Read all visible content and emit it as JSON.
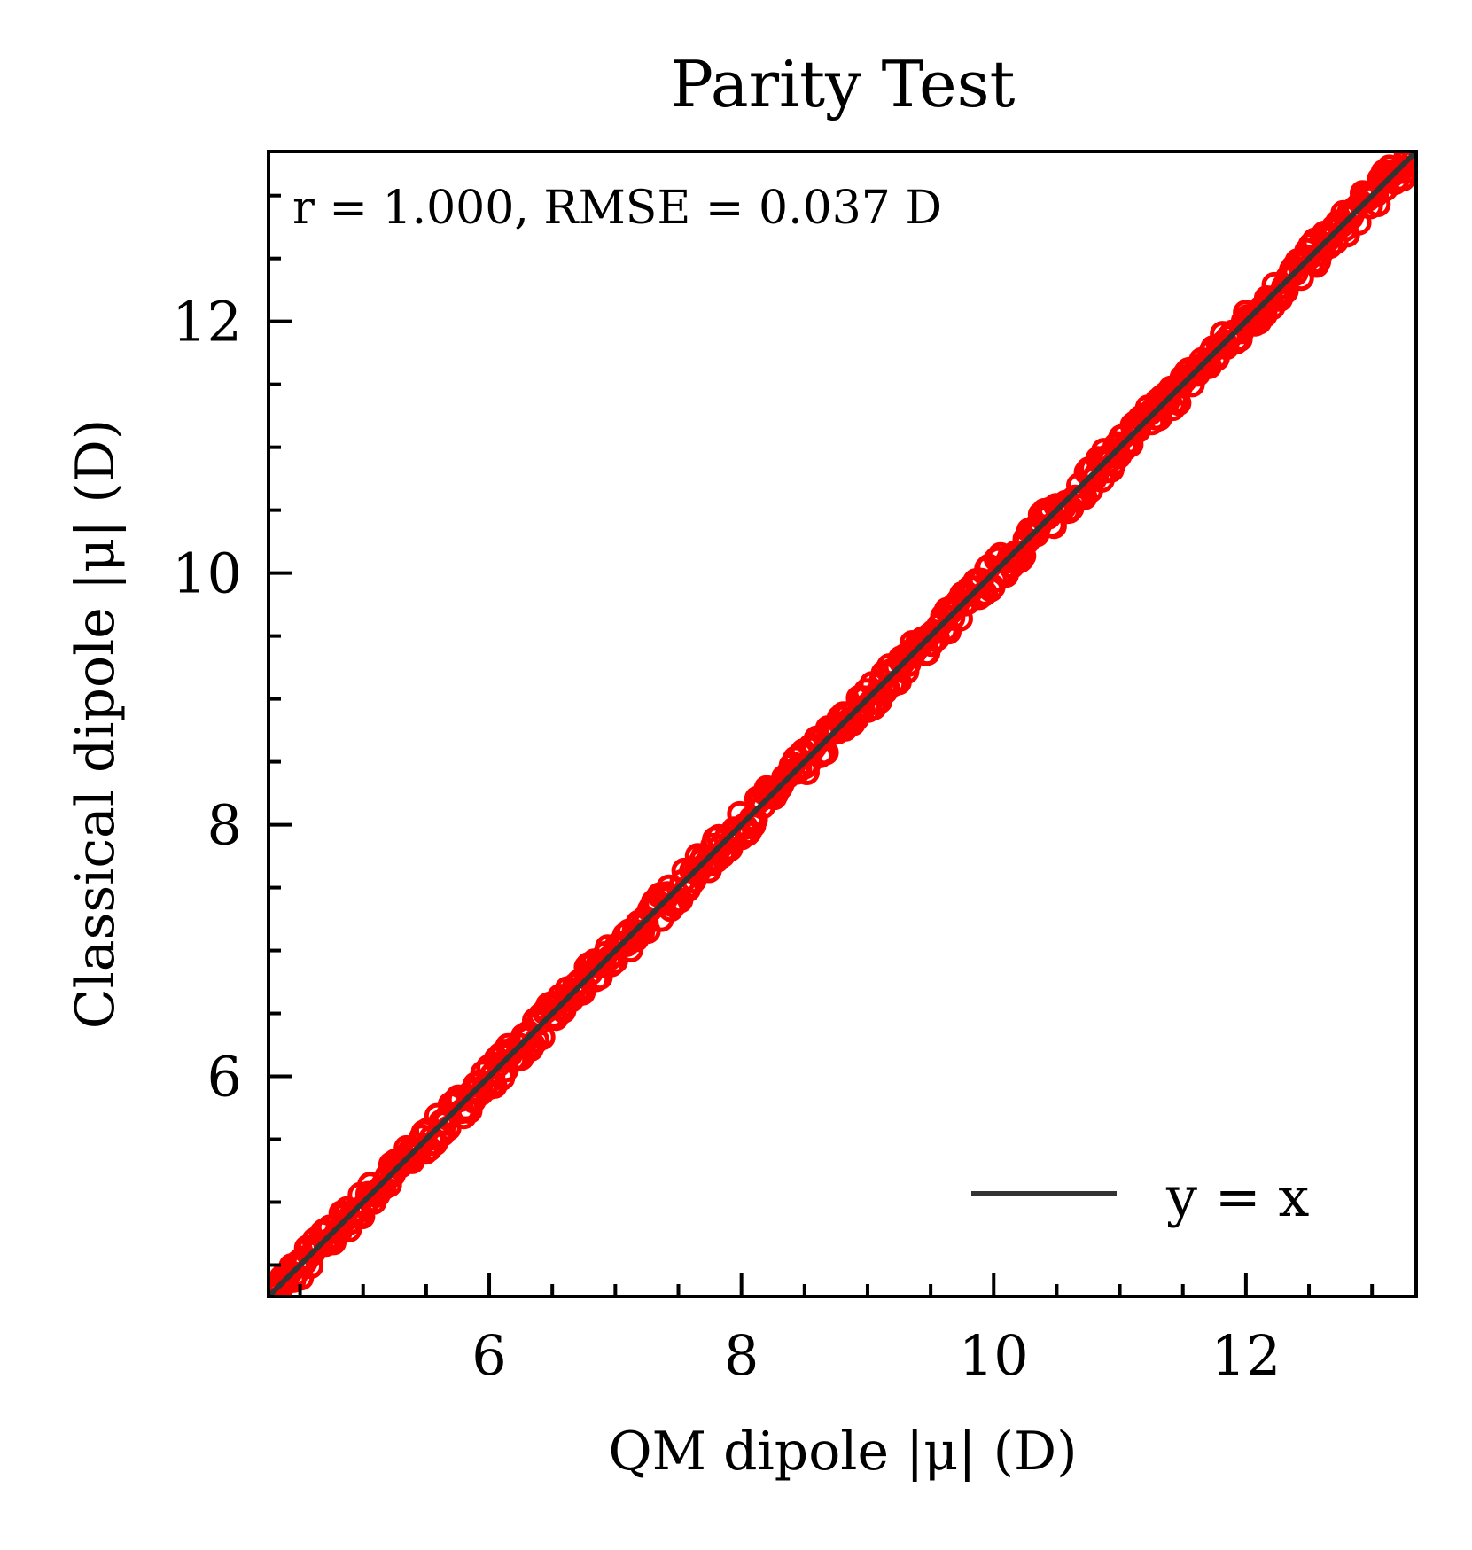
{
  "chart_data": {
    "type": "scatter",
    "title": "Parity Test",
    "xlabel": "QM dipole |μ| (D)",
    "ylabel": "Classical dipole |μ| (D)",
    "xlim": [
      4.25,
      13.35
    ],
    "ylim": [
      4.25,
      13.35
    ],
    "x_ticks": [
      6,
      8,
      10,
      12
    ],
    "y_ticks": [
      6,
      8,
      10,
      12
    ],
    "x_tick_labels": [
      "6",
      "8",
      "10",
      "12"
    ],
    "y_tick_labels": [
      "6",
      "8",
      "10",
      "12"
    ],
    "minor_tick_step": 0.5,
    "annotation": "r = 1.000,  RMSE = 0.037 D",
    "legend": {
      "entries": [
        "y = x"
      ],
      "placement": "lower-right"
    },
    "grid": false,
    "reference_line": {
      "label": "y = x",
      "from": [
        4.25,
        4.25
      ],
      "to": [
        13.35,
        13.35
      ],
      "color": "#333333"
    },
    "series": [
      {
        "marker": "open-circle",
        "color": "#ff0000",
        "x_range": [
          4.25,
          13.35
        ],
        "offset_band": [
          -0.12,
          0.1
        ],
        "y_equals_x_plus_offset": true
      }
    ]
  }
}
